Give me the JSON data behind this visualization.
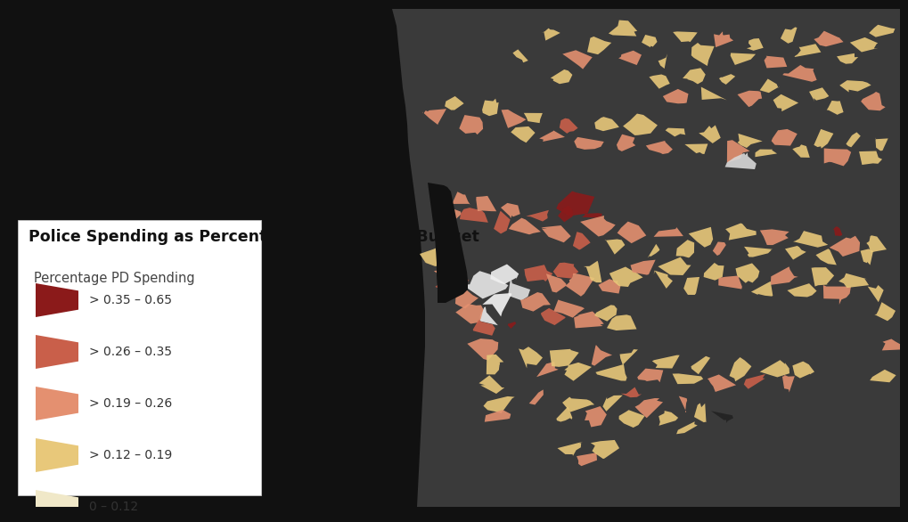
{
  "background_color": "#111111",
  "land_color": "#3a3a3a",
  "bay_color": "#111111",
  "legend_bg_color": "#ffffff",
  "title_line1": "Police Spending as Percentage of Municipal Budget",
  "subtitle": "Percentage PD Spending",
  "legend_items": [
    {
      "label": "> 0.35 – 0.65",
      "color": "#8b1a1a"
    },
    {
      "label": "> 0.26 – 0.35",
      "color": "#c95f4a"
    },
    {
      "label": "> 0.19 – 0.26",
      "color": "#e49070"
    },
    {
      "label": "> 0.12 – 0.19",
      "color": "#e8c87a"
    },
    {
      "label": "0 – 0.12",
      "color": "#f0e8c8"
    }
  ],
  "title_fontsize": 12.5,
  "subtitle_fontsize": 10.5,
  "legend_fontsize": 10
}
